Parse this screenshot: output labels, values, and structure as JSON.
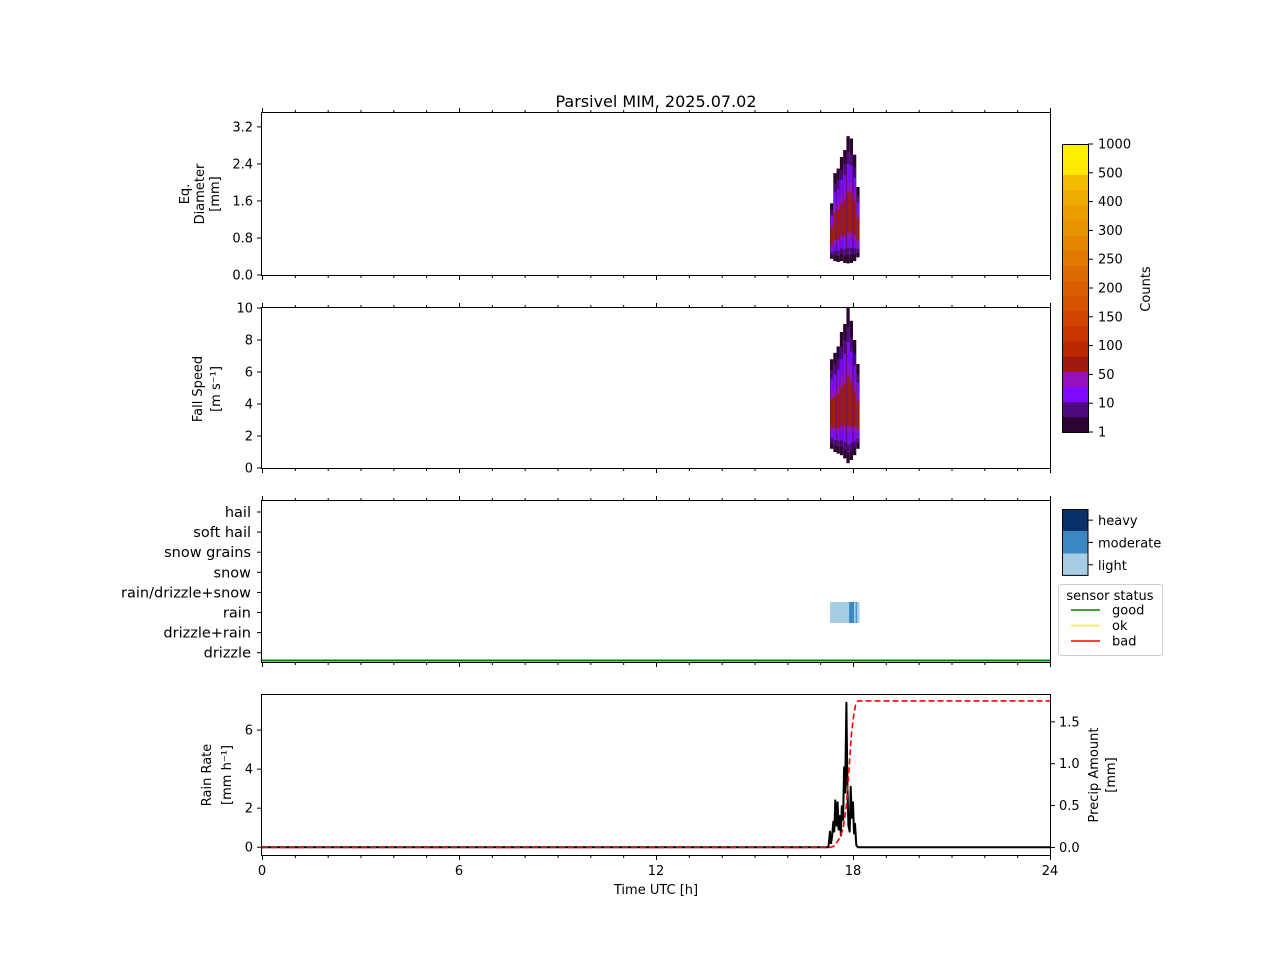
{
  "title": "Parsivel MIM, 2025.07.02",
  "chart_data": [
    {
      "type": "heatmap",
      "panel": "diameter",
      "ylabel": [
        "Eq.",
        "Diameter",
        "[mm]"
      ],
      "yticks": [
        "0.0",
        "0.8",
        "1.6",
        "2.4",
        "3.2"
      ],
      "ylim": [
        0,
        3.5
      ],
      "xlim": [
        0,
        24
      ],
      "blobs": [
        {
          "t": 17.35,
          "lo": 0.35,
          "hi": 1.55
        },
        {
          "t": 17.45,
          "lo": 0.3,
          "hi": 2.2
        },
        {
          "t": 17.55,
          "lo": 0.28,
          "hi": 2.3
        },
        {
          "t": 17.65,
          "lo": 0.3,
          "hi": 2.55
        },
        {
          "t": 17.75,
          "lo": 0.26,
          "hi": 2.7
        },
        {
          "t": 17.85,
          "lo": 0.25,
          "hi": 3.0
        },
        {
          "t": 17.95,
          "lo": 0.26,
          "hi": 2.95
        },
        {
          "t": 18.05,
          "lo": 0.3,
          "hi": 2.6
        },
        {
          "t": 18.15,
          "lo": 0.38,
          "hi": 1.9
        }
      ]
    },
    {
      "type": "heatmap",
      "panel": "fall_speed",
      "ylabel": [
        "Fall Speed",
        "[m s⁻¹]"
      ],
      "yticks": [
        "0",
        "2",
        "4",
        "6",
        "8",
        "10"
      ],
      "ylim": [
        0,
        10
      ],
      "xlim": [
        0,
        24
      ],
      "blobs": [
        {
          "t": 17.35,
          "lo": 1.2,
          "hi": 6.8
        },
        {
          "t": 17.45,
          "lo": 1.0,
          "hi": 7.2
        },
        {
          "t": 17.55,
          "lo": 0.9,
          "hi": 7.6
        },
        {
          "t": 17.65,
          "lo": 0.8,
          "hi": 8.5
        },
        {
          "t": 17.75,
          "lo": 0.6,
          "hi": 9.0
        },
        {
          "t": 17.85,
          "lo": 0.3,
          "hi": 10.0
        },
        {
          "t": 17.95,
          "lo": 0.5,
          "hi": 9.2
        },
        {
          "t": 18.05,
          "lo": 0.8,
          "hi": 8.0
        },
        {
          "t": 18.15,
          "lo": 1.2,
          "hi": 6.5
        }
      ]
    },
    {
      "type": "colorbar",
      "label": "Counts",
      "ticks": [
        "1",
        "10",
        "50",
        "100",
        "150",
        "200",
        "250",
        "300",
        "400",
        "500",
        "1000"
      ],
      "colors": [
        "#2b0530",
        "#4f0a80",
        "#7f0aff",
        "#9510c0",
        "#a01a10",
        "#bb2800",
        "#c93600",
        "#d14400",
        "#d65200",
        "#da5e00",
        "#dd6b00",
        "#e27a00",
        "#e58600",
        "#e99300",
        "#ec9e00",
        "#efab00",
        "#f4bc00",
        "#ffe800",
        "#fff000"
      ]
    },
    {
      "type": "categorical",
      "panel": "precip_type",
      "categories": [
        "hail",
        "soft hail",
        "snow grains",
        "snow",
        "rain/drizzle+snow",
        "rain",
        "drizzle+rain",
        "drizzle"
      ],
      "intensity_legend": [
        "heavy",
        "moderate",
        "light"
      ],
      "intensity_colors": {
        "heavy": "#08306b",
        "moderate": "#3a87c2",
        "light": "#a6cde3"
      },
      "events": [
        {
          "category": "rain",
          "start": 17.3,
          "end": 17.88,
          "intensity": "light"
        },
        {
          "category": "rain",
          "start": 17.88,
          "end": 18.03,
          "intensity": "moderate"
        },
        {
          "category": "rain",
          "start": 18.03,
          "end": 18.08,
          "intensity": "light"
        },
        {
          "category": "rain",
          "start": 18.08,
          "end": 18.12,
          "intensity": "moderate"
        },
        {
          "category": "rain",
          "start": 18.12,
          "end": 18.2,
          "intensity": "light"
        }
      ],
      "sensor_status_title": "sensor status",
      "sensor_status_legend": [
        {
          "label": "good",
          "color": "#008000"
        },
        {
          "label": "ok",
          "color": "#ffff00"
        },
        {
          "label": "bad",
          "color": "#ff0000"
        }
      ],
      "sensor_status_line": {
        "status": "good",
        "start": 0,
        "end": 24
      }
    },
    {
      "type": "line",
      "panel": "rain_rate",
      "xlabel": "Time UTC [h]",
      "xticks": [
        "0",
        "6",
        "12",
        "18",
        "24"
      ],
      "xlim": [
        0,
        24
      ],
      "ylabel_left": [
        "Rain Rate",
        "[mm h⁻¹]"
      ],
      "ylabel_right": [
        "Precip Amount",
        "[mm]"
      ],
      "yticks_left": [
        "0",
        "2",
        "4",
        "6"
      ],
      "yticks_right": [
        "0.0",
        "0.5",
        "1.0",
        "1.5"
      ],
      "ylim_left": [
        -0.4,
        7.8
      ],
      "ylim_right": [
        -0.09,
        1.82
      ],
      "series": [
        {
          "name": "Rain Rate",
          "color": "#000000",
          "axis": "left",
          "x": [
            0,
            17.25,
            17.3,
            17.33,
            17.36,
            17.4,
            17.43,
            17.46,
            17.5,
            17.53,
            17.56,
            17.6,
            17.63,
            17.66,
            17.7,
            17.73,
            17.76,
            17.8,
            17.83,
            17.86,
            17.9,
            17.93,
            17.96,
            18.0,
            18.03,
            18.06,
            18.1,
            18.15,
            18.2,
            24
          ],
          "values": [
            0,
            0,
            0.8,
            0.2,
            0.5,
            1.3,
            0.8,
            2.4,
            1.1,
            2.3,
            0.9,
            1.6,
            0.6,
            2.1,
            1.4,
            4.1,
            2.8,
            7.4,
            3.2,
            1.1,
            0.8,
            3.1,
            1.5,
            2.3,
            0.7,
            1.2,
            0.1,
            0,
            0,
            0
          ]
        },
        {
          "name": "Precip Amount",
          "color": "#ff0000",
          "axis": "right",
          "style": "dashed",
          "x": [
            0,
            17.3,
            17.45,
            17.6,
            17.7,
            17.8,
            17.88,
            17.95,
            18.02,
            18.08,
            18.15,
            24
          ],
          "values": [
            0,
            0,
            0.02,
            0.12,
            0.22,
            0.5,
            0.95,
            1.35,
            1.58,
            1.7,
            1.75,
            1.75
          ]
        }
      ]
    }
  ]
}
